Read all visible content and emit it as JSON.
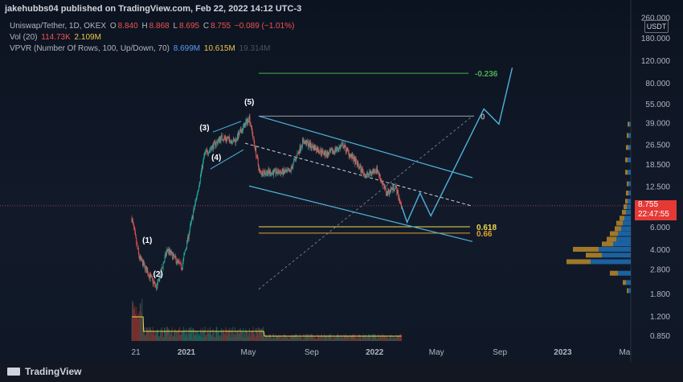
{
  "header": {
    "published": "jakehubbs04 published on TradingView.com, Feb 22, 2022 14:12 UTC-3",
    "symbol": "Uniswap/Tether, 1D, OKEX",
    "ohlc": {
      "o_label": "O",
      "o": "8.840",
      "h_label": "H",
      "h": "8.868",
      "l_label": "L",
      "l": "8.695",
      "c_label": "C",
      "c": "8.755",
      "change": "−0.089 (−1.01%)"
    },
    "vol": {
      "label": "Vol (20)",
      "v1": "114.73K",
      "v2": "2.109M"
    },
    "vpvr": {
      "label": "VPVR (Number Of Rows, 100, Up/Down, 70)",
      "v1": "8.699M",
      "v2": "10.615M",
      "v3": "19.314M"
    }
  },
  "price_axis": {
    "currency_button": "USDT",
    "current_price": "8.755",
    "countdown": "22:47:55"
  },
  "footer": {
    "brand": "TradingView"
  },
  "colors": {
    "up": "#26a69a",
    "down": "#ef5350",
    "channel": "#4fb3d9",
    "fib_green": "#4caf50",
    "fib_gold": "#f0d94a",
    "fib_orange": "#e0a030",
    "fib_zero": "#9aa0a8",
    "vol_ma": "#f0d94a",
    "vp_up": "#1e6fb5",
    "vp_down": "#b8892a"
  },
  "chart_data": {
    "type": "candlestick",
    "title": "Uniswap/Tether, 1D, OKEX",
    "y_scale": "log",
    "y_ticks": [
      "260.000",
      "180.000",
      "120.000",
      "80.000",
      "55.000",
      "39.000",
      "26.500",
      "18.500",
      "12.500",
      "8.755",
      "6.000",
      "4.000",
      "2.800",
      "1.800",
      "1.200",
      "0.850"
    ],
    "x_ticks": [
      "21",
      "2021",
      "May",
      "Sep",
      "2022",
      "May",
      "Sep",
      "2023",
      "Ma"
    ],
    "price_path": [
      {
        "date": "2020-09-17",
        "price": 7.0
      },
      {
        "date": "2020-10-01",
        "price": 3.5
      },
      {
        "date": "2020-11-04",
        "price": 2.0
      },
      {
        "date": "2020-11-25",
        "price": 4.0
      },
      {
        "date": "2020-12-23",
        "price": 2.9
      },
      {
        "date": "2021-01-20",
        "price": 10.0
      },
      {
        "date": "2021-02-05",
        "price": 22.0
      },
      {
        "date": "2021-03-10",
        "price": 30.0
      },
      {
        "date": "2021-04-05",
        "price": 28.0
      },
      {
        "date": "2021-05-03",
        "price": 43.0
      },
      {
        "date": "2021-05-23",
        "price": 16.0
      },
      {
        "date": "2021-07-20",
        "price": 16.0
      },
      {
        "date": "2021-08-15",
        "price": 28.0
      },
      {
        "date": "2021-10-01",
        "price": 22.0
      },
      {
        "date": "2021-11-01",
        "price": 26.0
      },
      {
        "date": "2021-12-15",
        "price": 15.0
      },
      {
        "date": "2022-01-05",
        "price": 17.0
      },
      {
        "date": "2022-01-24",
        "price": 11.0
      },
      {
        "date": "2022-02-10",
        "price": 12.5
      },
      {
        "date": "2022-02-22",
        "price": 8.755
      }
    ],
    "elliott_labels": [
      {
        "label": "(1)",
        "date": "2020-10-17",
        "price": 4.5
      },
      {
        "label": "(2)",
        "date": "2020-11-07",
        "price": 2.45
      },
      {
        "label": "(3)",
        "date": "2021-02-05",
        "price": 34.0
      },
      {
        "label": "(4)",
        "date": "2021-02-28",
        "price": 20.0
      },
      {
        "label": "(5)",
        "date": "2021-05-03",
        "price": 54.0
      }
    ],
    "fib_levels": [
      {
        "label": "-0.236",
        "price": 95.0
      },
      {
        "label": "0",
        "price": 44.0
      },
      {
        "label": "0.618",
        "price": 6.0
      },
      {
        "label": "0.66",
        "price": 5.35
      }
    ],
    "projection": [
      {
        "date": "2022-03-05",
        "price": 6.5
      },
      {
        "date": "2022-03-30",
        "price": 11.0
      },
      {
        "date": "2022-04-20",
        "price": 7.3
      },
      {
        "date": "2022-08-01",
        "price": 50.0
      },
      {
        "date": "2022-08-30",
        "price": 38.0
      },
      {
        "date": "2022-09-25",
        "price": 105.0
      }
    ],
    "current_price": 8.755,
    "volume": {
      "label": "Vol (20)",
      "value": "114.73K",
      "ma": "2.109M"
    },
    "volume_profile": {
      "label": "VPVR (Number Of Rows, 100, Up/Down, 70)",
      "up": "8.699M",
      "down": "10.615M",
      "total": "19.314M"
    }
  }
}
